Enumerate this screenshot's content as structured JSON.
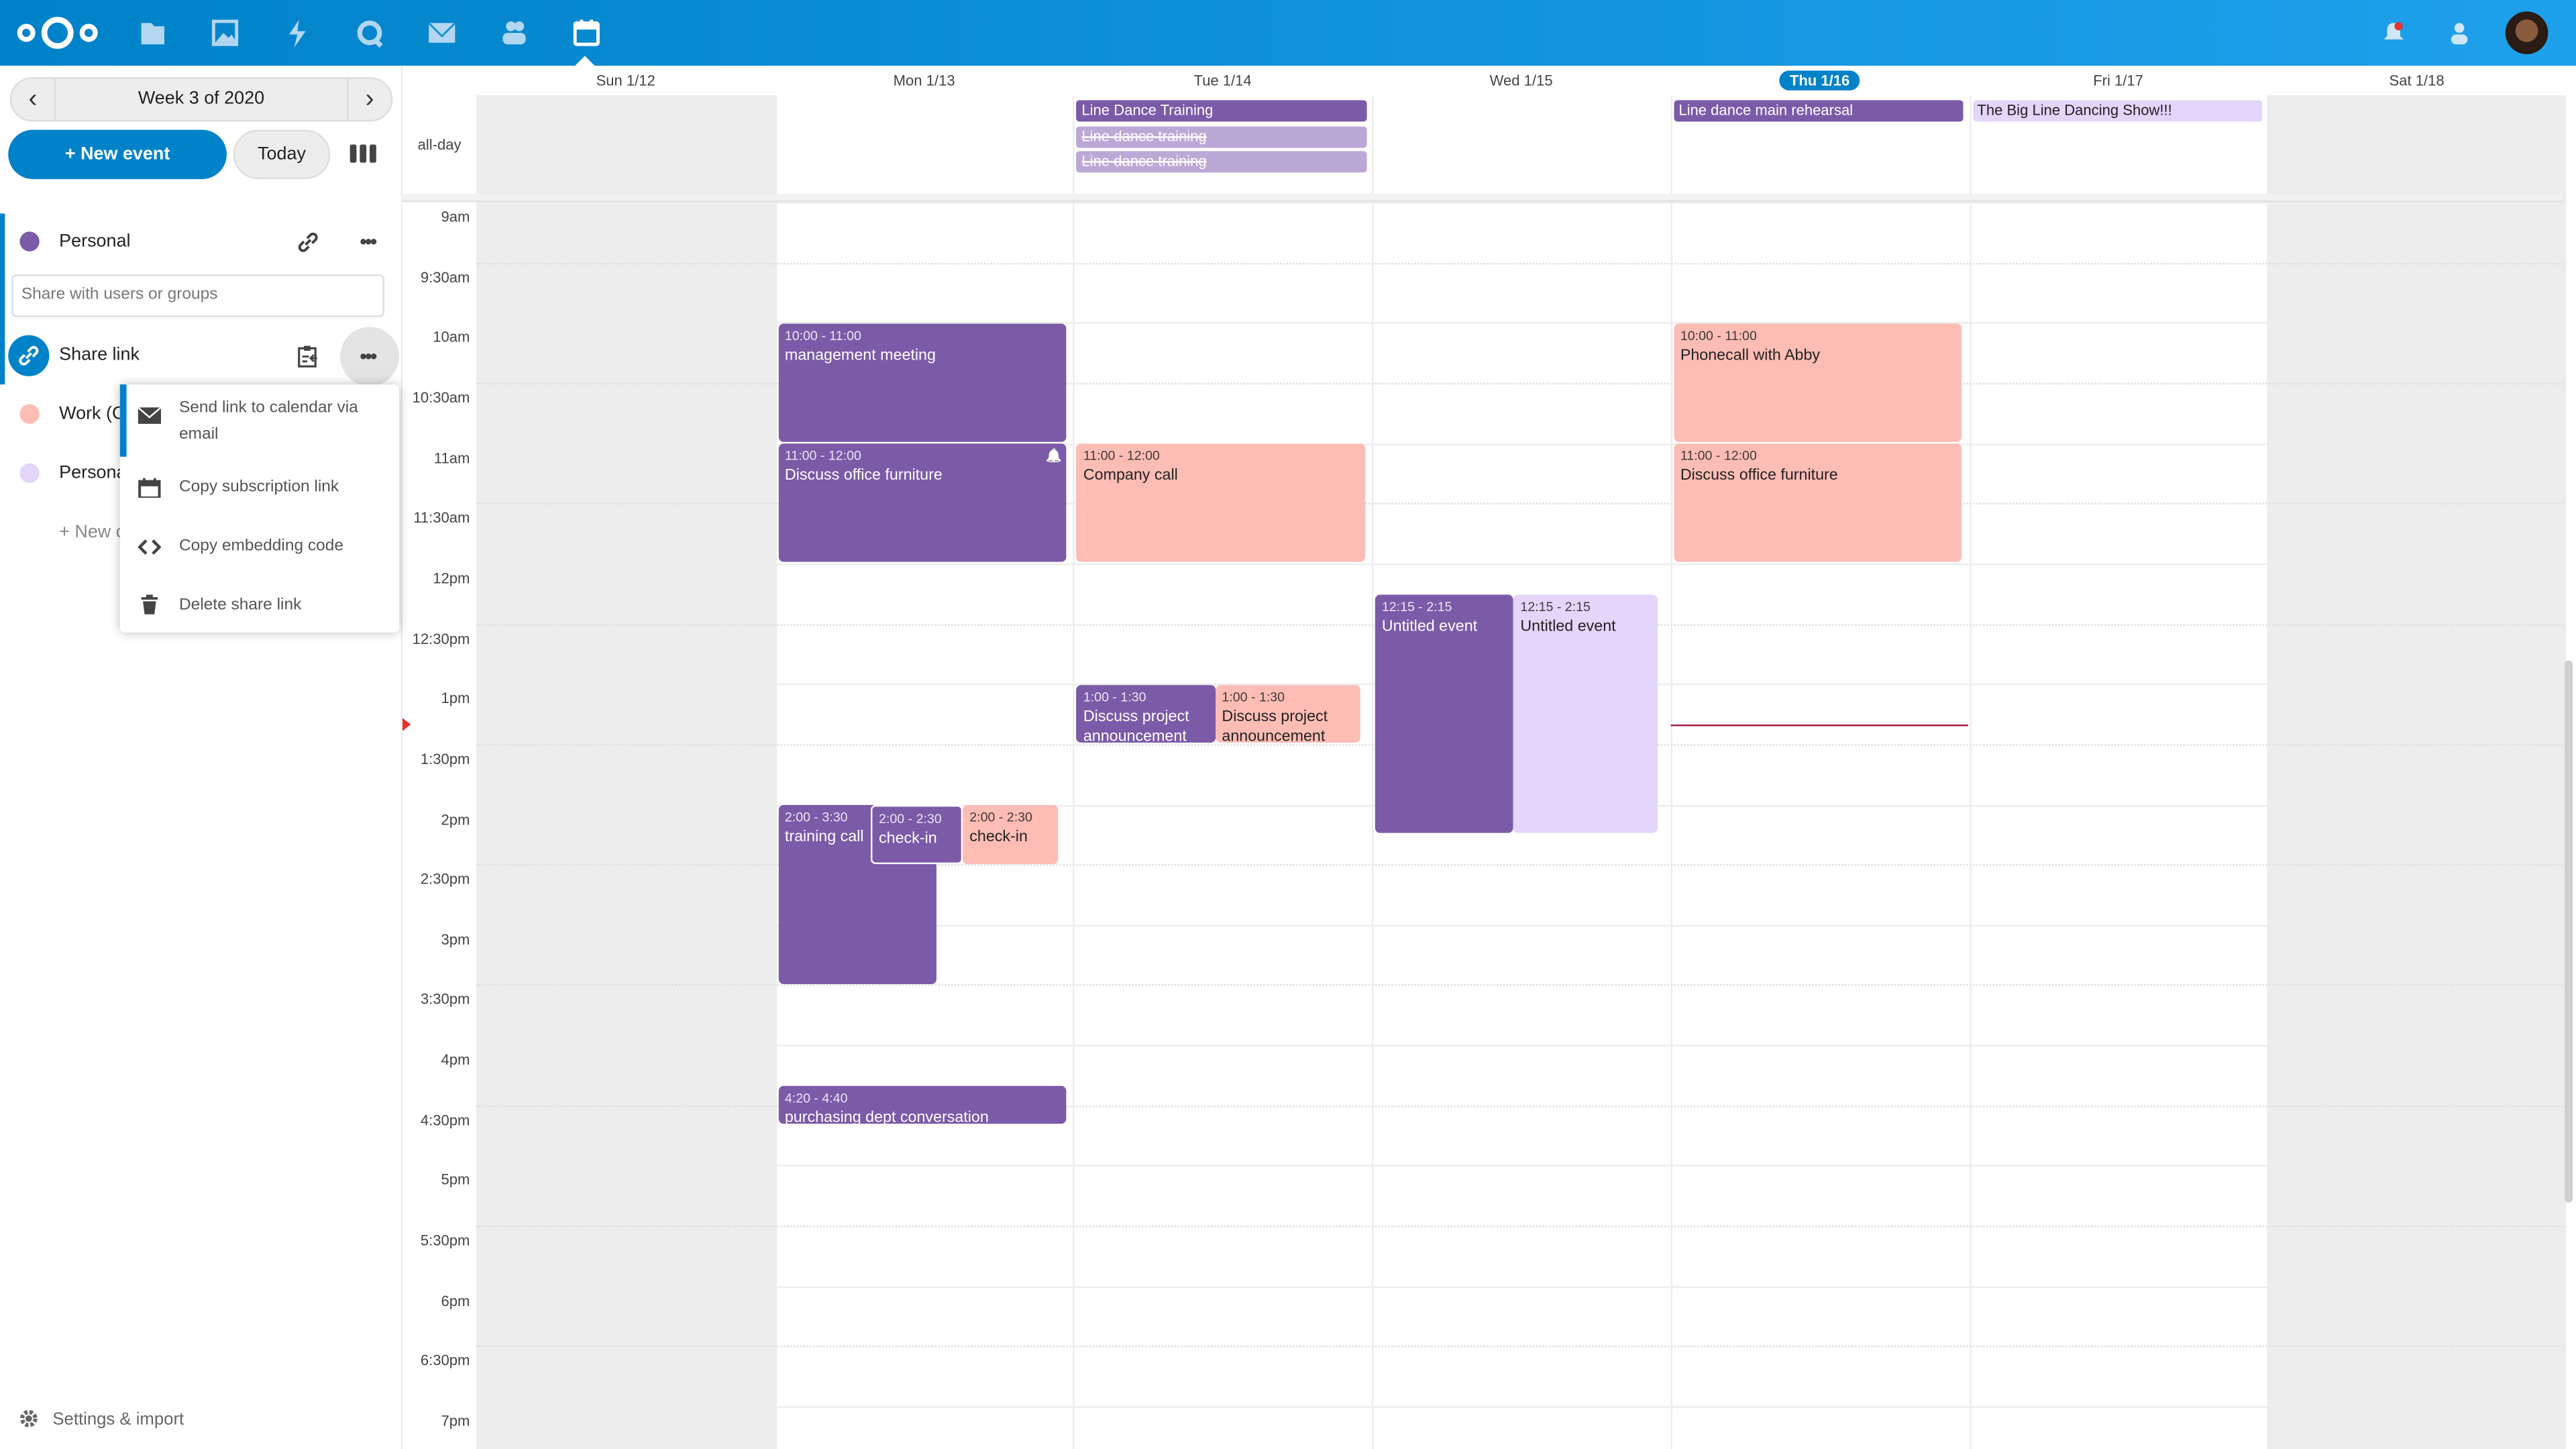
{
  "header": {
    "apps": [
      "files-icon",
      "photos-icon",
      "activity-icon",
      "talk-icon",
      "mail-icon",
      "contacts-icon",
      "calendar-icon"
    ],
    "active_app": "calendar-icon",
    "right_icons": [
      "notifications-icon",
      "contacts-menu-icon",
      "avatar"
    ]
  },
  "colors": {
    "accent": "#0082c9",
    "purple": "#7b5aa8",
    "pink": "#fdbdb5",
    "lavender": "#e4d5fb",
    "weekend": "#ededed",
    "now": "#a3184a"
  },
  "sidebar": {
    "week_label": "Week 3 of 2020",
    "new_event": "+ New event",
    "today": "Today",
    "calendars": [
      {
        "name": "Personal",
        "color": "#7b5aa8"
      },
      {
        "name": "Work (C",
        "color": "#fdbdb5"
      },
      {
        "name": "Persona",
        "color": "#e4d5fb"
      }
    ],
    "share_placeholder": "Share with users or groups",
    "share_link": "Share link",
    "new_calendar": "+ New c",
    "settings": "Settings & import",
    "menu": [
      {
        "icon": "mail-icon",
        "label": "Send link to calendar via email"
      },
      {
        "icon": "calendar-icon",
        "label": "Copy subscription link"
      },
      {
        "icon": "code-icon",
        "label": "Copy embedding code"
      },
      {
        "icon": "trash-icon",
        "label": "Delete share link"
      }
    ]
  },
  "calendar": {
    "all_day_label": "all-day",
    "days": [
      "Sun 1/12",
      "Mon 1/13",
      "Tue 1/14",
      "Wed 1/15",
      "Thu 1/16",
      "Fri 1/17",
      "Sat 1/18"
    ],
    "today_index": 4,
    "weekend_indices": [
      0,
      6
    ],
    "time_labels": [
      "9am",
      "9:30am",
      "10am",
      "10:30am",
      "11am",
      "11:30am",
      "12pm",
      "12:30pm",
      "1pm",
      "1:30pm",
      "2pm",
      "2:30pm",
      "3pm",
      "3:30pm",
      "4pm",
      "4:30pm",
      "5pm",
      "5:30pm",
      "6pm",
      "6:30pm",
      "7pm"
    ],
    "now_time": "1:20",
    "all_day_events": [
      {
        "day": 2,
        "title": "Line Dance Training",
        "color": "purple",
        "cancelled": false
      },
      {
        "day": 2,
        "title": "Line dance training",
        "color": "lightpurple",
        "cancelled": true
      },
      {
        "day": 2,
        "title": "Line dance training",
        "color": "lightpurple",
        "cancelled": true
      },
      {
        "day": 4,
        "title": "Line dance main rehearsal",
        "color": "purple",
        "cancelled": false
      },
      {
        "day": 5,
        "title": "The Big Line Dancing Show!!!",
        "color": "lavender",
        "cancelled": false
      }
    ],
    "events": [
      {
        "day": 1,
        "start": 10,
        "end": 11,
        "time": "10:00 - 11:00",
        "title": "management meeting",
        "color": "purple"
      },
      {
        "day": 1,
        "start": 11,
        "end": 12,
        "time": "11:00 - 12:00",
        "title": "Discuss office furniture",
        "color": "purple",
        "alarm": true
      },
      {
        "day": 1,
        "start": 14,
        "end": 15.5,
        "time": "2:00 - 3:30",
        "title": "training call",
        "color": "purple"
      },
      {
        "day": 1,
        "start": 14,
        "end": 14.5,
        "time": "2:00 - 2:30",
        "title": "check-in",
        "color": "purple"
      },
      {
        "day": 1,
        "start": 14,
        "end": 14.5,
        "time": "2:00 - 2:30",
        "title": "check-in",
        "color": "pink"
      },
      {
        "day": 1,
        "start": 16.333,
        "end": 16.667,
        "time": "4:20 - 4:40",
        "title": "purchasing dept conversation",
        "color": "purple"
      },
      {
        "day": 2,
        "start": 11,
        "end": 12,
        "time": "11:00 - 12:00",
        "title": "Company call",
        "color": "pink"
      },
      {
        "day": 2,
        "start": 13,
        "end": 13.5,
        "time": "1:00 - 1:30",
        "title": "Discuss project announcement",
        "color": "purple"
      },
      {
        "day": 2,
        "start": 13,
        "end": 13.5,
        "time": "1:00 - 1:30",
        "title": "Discuss project announcement",
        "color": "pink"
      },
      {
        "day": 3,
        "start": 12.25,
        "end": 14.25,
        "time": "12:15 - 2:15",
        "title": "Untitled event",
        "color": "purple"
      },
      {
        "day": 3,
        "start": 12.25,
        "end": 14.25,
        "time": "12:15 - 2:15",
        "title": "Untitled event",
        "color": "lavender"
      },
      {
        "day": 4,
        "start": 10,
        "end": 11,
        "time": "10:00 - 11:00",
        "title": "Phonecall with Abby",
        "color": "pink"
      },
      {
        "day": 4,
        "start": 11,
        "end": 12,
        "time": "11:00 - 12:00",
        "title": "Discuss office furniture",
        "color": "pink"
      }
    ]
  }
}
